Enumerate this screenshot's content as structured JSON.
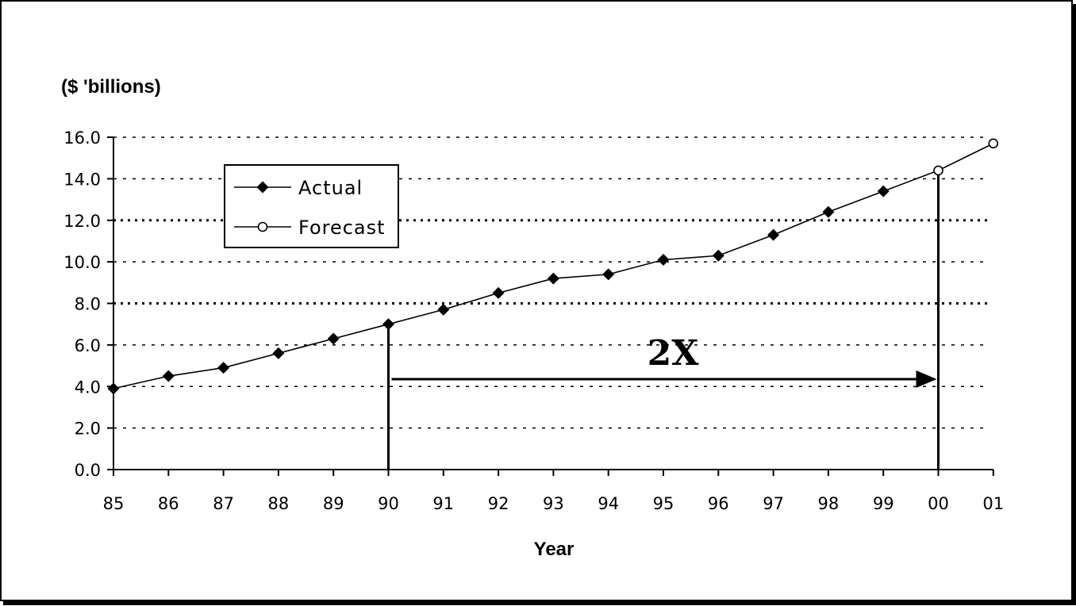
{
  "chart_data": {
    "type": "line",
    "ylabel": "($ 'billions)",
    "xlabel": "Year",
    "ylim": [
      0,
      16
    ],
    "yticks": [
      "0.0",
      "2.0",
      "4.0",
      "6.0",
      "8.0",
      "10.0",
      "12.0",
      "14.0",
      "16.0"
    ],
    "categories": [
      "85",
      "86",
      "87",
      "88",
      "89",
      "90",
      "91",
      "92",
      "93",
      "94",
      "95",
      "96",
      "97",
      "98",
      "99",
      "00",
      "01"
    ],
    "grid": true,
    "legend_position": "top-left",
    "series": [
      {
        "name": "Actual",
        "marker": "filled-diamond",
        "x": [
          "85",
          "86",
          "87",
          "88",
          "89",
          "90",
          "91",
          "92",
          "93",
          "94",
          "95",
          "96",
          "97",
          "98",
          "99"
        ],
        "values": [
          3.9,
          4.5,
          4.9,
          5.6,
          6.3,
          7.0,
          7.7,
          8.5,
          9.2,
          9.4,
          10.1,
          10.3,
          11.3,
          12.4,
          13.4
        ]
      },
      {
        "name": "Forecast",
        "marker": "open-circle",
        "x": [
          "99",
          "00",
          "01"
        ],
        "values": [
          13.4,
          14.4,
          15.7
        ]
      }
    ],
    "annotation": {
      "label": "2X",
      "from_x": "90",
      "to_x": "00"
    }
  },
  "colors": {
    "line": "#000000",
    "background": "#ffffff"
  }
}
